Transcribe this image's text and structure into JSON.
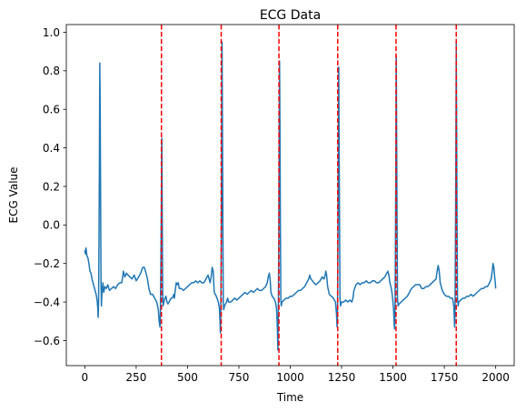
{
  "chart_data": {
    "type": "line",
    "title": "ECG Data",
    "xlabel": "Time",
    "ylabel": "ECG Value",
    "xlim": [
      -90,
      2090
    ],
    "ylim": [
      -0.73,
      1.04
    ],
    "xticks": [
      0,
      250,
      500,
      750,
      1000,
      1250,
      1500,
      1750,
      2000
    ],
    "yticks": [
      -0.6,
      -0.4,
      -0.2,
      0.0,
      0.2,
      0.4,
      0.6,
      0.8,
      1.0
    ],
    "ytick_labels": [
      "−0.6",
      "−0.4",
      "−0.2",
      "0.0",
      "0.2",
      "0.4",
      "0.6",
      "0.8",
      "1.0"
    ],
    "grid": false,
    "series": [
      {
        "color": "#1f77b4",
        "points": [
          [
            0,
            -0.13
          ],
          [
            3,
            -0.15
          ],
          [
            6,
            -0.12
          ],
          [
            10,
            -0.16
          ],
          [
            15,
            -0.17
          ],
          [
            20,
            -0.2
          ],
          [
            25,
            -0.24
          ],
          [
            30,
            -0.25
          ],
          [
            35,
            -0.28
          ],
          [
            40,
            -0.3
          ],
          [
            45,
            -0.32
          ],
          [
            50,
            -0.34
          ],
          [
            55,
            -0.36
          ],
          [
            60,
            -0.39
          ],
          [
            63,
            -0.43
          ],
          [
            65,
            -0.48
          ],
          [
            67,
            -0.4
          ],
          [
            69,
            -0.1
          ],
          [
            71,
            0.3
          ],
          [
            73,
            0.84
          ],
          [
            75,
            0.6
          ],
          [
            77,
            0.1
          ],
          [
            79,
            -0.3
          ],
          [
            81,
            -0.42
          ],
          [
            83,
            -0.36
          ],
          [
            88,
            -0.3
          ],
          [
            92,
            -0.35
          ],
          [
            98,
            -0.32
          ],
          [
            105,
            -0.33
          ],
          [
            112,
            -0.31
          ],
          [
            120,
            -0.34
          ],
          [
            130,
            -0.33
          ],
          [
            140,
            -0.32
          ],
          [
            150,
            -0.33
          ],
          [
            160,
            -0.31
          ],
          [
            170,
            -0.3
          ],
          [
            180,
            -0.3
          ],
          [
            188,
            -0.24
          ],
          [
            195,
            -0.27
          ],
          [
            203,
            -0.25
          ],
          [
            210,
            -0.26
          ],
          [
            220,
            -0.27
          ],
          [
            230,
            -0.28
          ],
          [
            240,
            -0.26
          ],
          [
            250,
            -0.29
          ],
          [
            262,
            -0.27
          ],
          [
            272,
            -0.25
          ],
          [
            282,
            -0.22
          ],
          [
            290,
            -0.22
          ],
          [
            298,
            -0.25
          ],
          [
            305,
            -0.28
          ],
          [
            312,
            -0.33
          ],
          [
            320,
            -0.36
          ],
          [
            330,
            -0.36
          ],
          [
            340,
            -0.38
          ],
          [
            350,
            -0.4
          ],
          [
            358,
            -0.44
          ],
          [
            362,
            -0.5
          ],
          [
            366,
            -0.53
          ],
          [
            368,
            -0.45
          ],
          [
            371,
            -0.1
          ],
          [
            373,
            0.2
          ],
          [
            375,
            0.45
          ],
          [
            377,
            0.05
          ],
          [
            379,
            -0.35
          ],
          [
            381,
            -0.42
          ],
          [
            385,
            -0.4
          ],
          [
            390,
            -0.38
          ],
          [
            395,
            -0.37
          ],
          [
            400,
            -0.4
          ],
          [
            405,
            -0.41
          ],
          [
            410,
            -0.4
          ],
          [
            415,
            -0.39
          ],
          [
            420,
            -0.38
          ],
          [
            425,
            -0.38
          ],
          [
            430,
            -0.37
          ],
          [
            433,
            -0.36
          ],
          [
            436,
            -0.38
          ],
          [
            440,
            -0.34
          ],
          [
            445,
            -0.3
          ],
          [
            450,
            -0.31
          ],
          [
            455,
            -0.3
          ],
          [
            460,
            -0.33
          ],
          [
            470,
            -0.33
          ],
          [
            480,
            -0.34
          ],
          [
            490,
            -0.33
          ],
          [
            500,
            -0.32
          ],
          [
            510,
            -0.31
          ],
          [
            520,
            -0.3
          ],
          [
            530,
            -0.3
          ],
          [
            540,
            -0.29
          ],
          [
            550,
            -0.3
          ],
          [
            560,
            -0.29
          ],
          [
            570,
            -0.3
          ],
          [
            580,
            -0.3
          ],
          [
            590,
            -0.28
          ],
          [
            600,
            -0.26
          ],
          [
            610,
            -0.3
          ],
          [
            615,
            -0.27
          ],
          [
            620,
            -0.22
          ],
          [
            625,
            -0.24
          ],
          [
            630,
            -0.35
          ],
          [
            640,
            -0.37
          ],
          [
            650,
            -0.4
          ],
          [
            655,
            -0.43
          ],
          [
            658,
            -0.5
          ],
          [
            660,
            -0.56
          ],
          [
            662,
            -0.45
          ],
          [
            664,
            -0.1
          ],
          [
            666,
            0.3
          ],
          [
            668,
            0.95
          ],
          [
            670,
            0.5
          ],
          [
            672,
            0.0
          ],
          [
            674,
            -0.4
          ],
          [
            676,
            -0.44
          ],
          [
            680,
            -0.42
          ],
          [
            690,
            -0.4
          ],
          [
            695,
            -0.38
          ],
          [
            700,
            -0.4
          ],
          [
            710,
            -0.4
          ],
          [
            720,
            -0.39
          ],
          [
            730,
            -0.38
          ],
          [
            740,
            -0.39
          ],
          [
            750,
            -0.38
          ],
          [
            760,
            -0.37
          ],
          [
            770,
            -0.36
          ],
          [
            780,
            -0.35
          ],
          [
            790,
            -0.36
          ],
          [
            800,
            -0.35
          ],
          [
            810,
            -0.34
          ],
          [
            820,
            -0.35
          ],
          [
            830,
            -0.34
          ],
          [
            840,
            -0.33
          ],
          [
            850,
            -0.34
          ],
          [
            860,
            -0.34
          ],
          [
            870,
            -0.33
          ],
          [
            880,
            -0.32
          ],
          [
            888,
            -0.3
          ],
          [
            893,
            -0.27
          ],
          [
            898,
            -0.25
          ],
          [
            902,
            -0.28
          ],
          [
            906,
            -0.35
          ],
          [
            912,
            -0.37
          ],
          [
            920,
            -0.38
          ],
          [
            928,
            -0.4
          ],
          [
            933,
            -0.43
          ],
          [
            936,
            -0.5
          ],
          [
            938,
            -0.57
          ],
          [
            940,
            -0.65
          ],
          [
            942,
            -0.45
          ],
          [
            944,
            -0.1
          ],
          [
            946,
            0.4
          ],
          [
            948,
            0.85
          ],
          [
            950,
            0.5
          ],
          [
            952,
            0.0
          ],
          [
            954,
            -0.38
          ],
          [
            956,
            -0.42
          ],
          [
            960,
            -0.4
          ],
          [
            970,
            -0.39
          ],
          [
            980,
            -0.38
          ],
          [
            990,
            -0.38
          ],
          [
            1000,
            -0.37
          ],
          [
            1010,
            -0.37
          ],
          [
            1020,
            -0.36
          ],
          [
            1030,
            -0.35
          ],
          [
            1040,
            -0.34
          ],
          [
            1050,
            -0.34
          ],
          [
            1060,
            -0.33
          ],
          [
            1070,
            -0.32
          ],
          [
            1080,
            -0.3
          ],
          [
            1090,
            -0.28
          ],
          [
            1095,
            -0.26
          ],
          [
            1100,
            -0.28
          ],
          [
            1108,
            -0.29
          ],
          [
            1115,
            -0.3
          ],
          [
            1125,
            -0.31
          ],
          [
            1135,
            -0.3
          ],
          [
            1145,
            -0.29
          ],
          [
            1155,
            -0.27
          ],
          [
            1165,
            -0.28
          ],
          [
            1170,
            -0.26
          ],
          [
            1173,
            -0.24
          ],
          [
            1177,
            -0.26
          ],
          [
            1182,
            -0.32
          ],
          [
            1190,
            -0.36
          ],
          [
            1200,
            -0.37
          ],
          [
            1210,
            -0.38
          ],
          [
            1220,
            -0.4
          ],
          [
            1225,
            -0.46
          ],
          [
            1228,
            -0.53
          ],
          [
            1230,
            -0.45
          ],
          [
            1232,
            -0.1
          ],
          [
            1234,
            0.3
          ],
          [
            1236,
            0.82
          ],
          [
            1238,
            0.4
          ],
          [
            1240,
            0.0
          ],
          [
            1242,
            -0.38
          ],
          [
            1245,
            -0.42
          ],
          [
            1250,
            -0.4
          ],
          [
            1260,
            -0.4
          ],
          [
            1270,
            -0.39
          ],
          [
            1280,
            -0.4
          ],
          [
            1290,
            -0.39
          ],
          [
            1300,
            -0.4
          ],
          [
            1305,
            -0.38
          ],
          [
            1310,
            -0.34
          ],
          [
            1320,
            -0.31
          ],
          [
            1330,
            -0.3
          ],
          [
            1340,
            -0.31
          ],
          [
            1350,
            -0.3
          ],
          [
            1360,
            -0.3
          ],
          [
            1370,
            -0.29
          ],
          [
            1380,
            -0.3
          ],
          [
            1390,
            -0.3
          ],
          [
            1400,
            -0.29
          ],
          [
            1410,
            -0.29
          ],
          [
            1420,
            -0.3
          ],
          [
            1430,
            -0.3
          ],
          [
            1440,
            -0.29
          ],
          [
            1450,
            -0.28
          ],
          [
            1460,
            -0.27
          ],
          [
            1470,
            -0.25
          ],
          [
            1475,
            -0.24
          ],
          [
            1480,
            -0.26
          ],
          [
            1485,
            -0.3
          ],
          [
            1490,
            -0.32
          ],
          [
            1495,
            -0.35
          ],
          [
            1500,
            -0.4
          ],
          [
            1503,
            -0.44
          ],
          [
            1506,
            -0.52
          ],
          [
            1508,
            -0.54
          ],
          [
            1510,
            -0.45
          ],
          [
            1512,
            -0.1
          ],
          [
            1514,
            0.3
          ],
          [
            1516,
            0.88
          ],
          [
            1518,
            0.45
          ],
          [
            1520,
            0.0
          ],
          [
            1522,
            -0.38
          ],
          [
            1525,
            -0.42
          ],
          [
            1530,
            -0.41
          ],
          [
            1540,
            -0.4
          ],
          [
            1550,
            -0.39
          ],
          [
            1560,
            -0.38
          ],
          [
            1570,
            -0.37
          ],
          [
            1580,
            -0.35
          ],
          [
            1590,
            -0.33
          ],
          [
            1600,
            -0.32
          ],
          [
            1610,
            -0.31
          ],
          [
            1620,
            -0.31
          ],
          [
            1630,
            -0.31
          ],
          [
            1640,
            -0.33
          ],
          [
            1650,
            -0.33
          ],
          [
            1660,
            -0.32
          ],
          [
            1670,
            -0.32
          ],
          [
            1680,
            -0.31
          ],
          [
            1690,
            -0.3
          ],
          [
            1700,
            -0.29
          ],
          [
            1710,
            -0.28
          ],
          [
            1715,
            -0.24
          ],
          [
            1720,
            -0.21
          ],
          [
            1725,
            -0.24
          ],
          [
            1730,
            -0.3
          ],
          [
            1740,
            -0.34
          ],
          [
            1750,
            -0.36
          ],
          [
            1760,
            -0.37
          ],
          [
            1770,
            -0.37
          ],
          [
            1780,
            -0.38
          ],
          [
            1790,
            -0.38
          ],
          [
            1796,
            -0.42
          ],
          [
            1800,
            -0.53
          ],
          [
            1802,
            -0.45
          ],
          [
            1804,
            -0.1
          ],
          [
            1806,
            0.3
          ],
          [
            1808,
            0.95
          ],
          [
            1810,
            0.5
          ],
          [
            1812,
            0.0
          ],
          [
            1814,
            -0.38
          ],
          [
            1817,
            -0.42
          ],
          [
            1820,
            -0.4
          ],
          [
            1830,
            -0.39
          ],
          [
            1840,
            -0.38
          ],
          [
            1850,
            -0.38
          ],
          [
            1860,
            -0.37
          ],
          [
            1870,
            -0.37
          ],
          [
            1880,
            -0.36
          ],
          [
            1890,
            -0.37
          ],
          [
            1900,
            -0.36
          ],
          [
            1910,
            -0.35
          ],
          [
            1920,
            -0.34
          ],
          [
            1930,
            -0.33
          ],
          [
            1940,
            -0.33
          ],
          [
            1950,
            -0.32
          ],
          [
            1960,
            -0.32
          ],
          [
            1970,
            -0.3
          ],
          [
            1978,
            -0.28
          ],
          [
            1983,
            -0.24
          ],
          [
            1987,
            -0.2
          ],
          [
            1991,
            -0.22
          ],
          [
            1995,
            -0.27
          ],
          [
            1998,
            -0.3
          ],
          [
            2000,
            -0.33
          ]
        ]
      }
    ],
    "vlines": {
      "color": "#ff0000",
      "style": "dashed",
      "x": [
        373,
        664,
        945,
        1231,
        1515,
        1808
      ]
    }
  }
}
